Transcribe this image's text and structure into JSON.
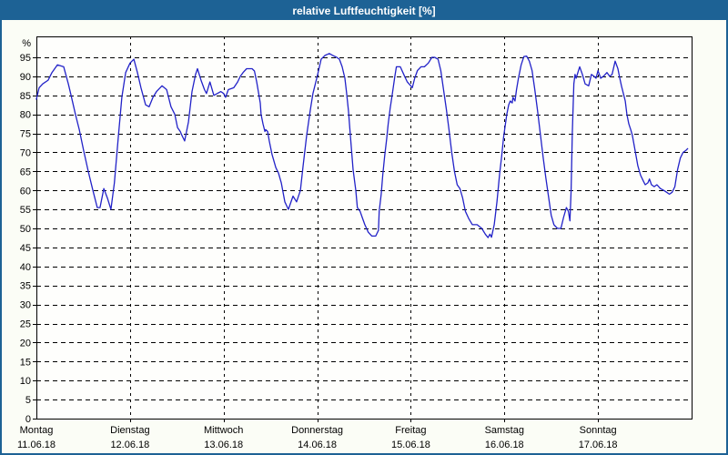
{
  "window": {
    "title": "relative Luftfeuchtigkeit [%]"
  },
  "colors": {
    "titlebar_bg": "#1d6295",
    "titlebar_text": "#ffffff",
    "window_border": "#1d6295",
    "panel_bg": "#fbfdf6",
    "plot_bg": "#fefefc",
    "grid": "#000000",
    "axis": "#000000",
    "line": "#2222c8",
    "label_text": "#000000"
  },
  "chart_data": {
    "type": "line",
    "title": "relative Luftfeuchtigkeit [%]",
    "y_unit_label": "%",
    "ylim": [
      0,
      100.5
    ],
    "y_ticks": [
      0,
      5,
      10,
      15,
      20,
      25,
      30,
      35,
      40,
      45,
      50,
      55,
      60,
      65,
      70,
      75,
      80,
      85,
      90,
      95
    ],
    "x_total_hours": 168,
    "grid": "dashed",
    "legend": "none",
    "days": [
      {
        "name": "Montag",
        "date": "11.06.18"
      },
      {
        "name": "Dienstag",
        "date": "12.06.18"
      },
      {
        "name": "Mittwoch",
        "date": "13.06.18"
      },
      {
        "name": "Donnerstag",
        "date": "14.06.18"
      },
      {
        "name": "Freitag",
        "date": "15.06.18"
      },
      {
        "name": "Samstag",
        "date": "16.06.18"
      },
      {
        "name": "Sonntag",
        "date": "17.06.18"
      }
    ],
    "series": [
      {
        "name": "relative Luftfeuchtigkeit",
        "unit": "%",
        "color": "#2222c8",
        "points": [
          [
            0,
            84
          ],
          [
            0.7,
            87
          ],
          [
            1.6,
            88
          ],
          [
            3,
            89
          ],
          [
            4,
            91
          ],
          [
            5.4,
            93
          ],
          [
            7,
            92.5
          ],
          [
            8.2,
            88
          ],
          [
            8.9,
            85
          ],
          [
            10,
            80
          ],
          [
            11,
            76
          ],
          [
            12.1,
            70.5
          ],
          [
            13.3,
            65
          ],
          [
            14.5,
            60
          ],
          [
            15.6,
            55.5
          ],
          [
            16.3,
            55.5
          ],
          [
            17.3,
            60.5
          ],
          [
            18.2,
            58
          ],
          [
            19.1,
            55
          ],
          [
            20,
            62
          ],
          [
            21,
            74
          ],
          [
            21.9,
            84.5
          ],
          [
            22.9,
            91
          ],
          [
            24,
            93.5
          ],
          [
            25,
            94.5
          ],
          [
            25.9,
            91
          ],
          [
            26.8,
            87
          ],
          [
            28,
            82.5
          ],
          [
            28.9,
            82
          ],
          [
            29.9,
            84.5
          ],
          [
            30.8,
            86
          ],
          [
            32.2,
            87.5
          ],
          [
            33.4,
            86.5
          ],
          [
            34.5,
            82
          ],
          [
            35.5,
            80
          ],
          [
            36.2,
            76.5
          ],
          [
            36.9,
            75.5
          ],
          [
            37.3,
            74.5
          ],
          [
            38,
            73
          ],
          [
            39,
            78
          ],
          [
            39.9,
            86
          ],
          [
            40.8,
            90.5
          ],
          [
            41.3,
            92
          ],
          [
            42.2,
            89
          ],
          [
            43.1,
            86.5
          ],
          [
            43.6,
            85.5
          ],
          [
            44.5,
            88.5
          ],
          [
            45.5,
            85
          ],
          [
            46.4,
            85.5
          ],
          [
            47.3,
            86
          ],
          [
            48,
            85.5
          ],
          [
            48.5,
            84.5
          ],
          [
            49.2,
            86.5
          ],
          [
            50.6,
            87
          ],
          [
            51.6,
            88.5
          ],
          [
            52.3,
            90
          ],
          [
            53,
            91
          ],
          [
            53.9,
            92
          ],
          [
            55.3,
            92
          ],
          [
            55.9,
            91.4
          ],
          [
            56.5,
            88.5
          ],
          [
            56.9,
            86
          ],
          [
            57.4,
            83
          ],
          [
            57.6,
            80
          ],
          [
            58.1,
            77.5
          ],
          [
            58.6,
            75.5
          ],
          [
            58.8,
            76
          ],
          [
            59.3,
            75.5
          ],
          [
            59.7,
            73
          ],
          [
            60.4,
            69.5
          ],
          [
            61.4,
            66
          ],
          [
            62.1,
            64.5
          ],
          [
            62.8,
            62
          ],
          [
            63.7,
            57
          ],
          [
            64.6,
            55
          ],
          [
            65.8,
            58.5
          ],
          [
            66.7,
            57
          ],
          [
            67.7,
            60
          ],
          [
            68.4,
            66.5
          ],
          [
            69.3,
            74.5
          ],
          [
            70.2,
            81
          ],
          [
            70.9,
            85.5
          ],
          [
            72,
            90
          ],
          [
            73,
            94.5
          ],
          [
            74,
            95.5
          ],
          [
            75.1,
            96
          ],
          [
            76,
            95.5
          ],
          [
            77,
            95
          ],
          [
            77.7,
            94.5
          ],
          [
            78.4,
            92.5
          ],
          [
            79.1,
            89.5
          ],
          [
            79.5,
            86
          ],
          [
            80,
            81
          ],
          [
            80.5,
            74.5
          ],
          [
            81.2,
            65.5
          ],
          [
            81.9,
            60
          ],
          [
            82.3,
            55.5
          ],
          [
            83,
            54.5
          ],
          [
            83.5,
            53
          ],
          [
            84.2,
            51
          ],
          [
            85.1,
            49
          ],
          [
            86,
            48
          ],
          [
            87,
            48
          ],
          [
            87.7,
            49.5
          ],
          [
            87.9,
            54.5
          ],
          [
            88.4,
            59
          ],
          [
            88.8,
            64
          ],
          [
            89.3,
            69
          ],
          [
            89.8,
            73.5
          ],
          [
            90.2,
            77.5
          ],
          [
            90.7,
            81.5
          ],
          [
            91.2,
            85
          ],
          [
            91.9,
            90
          ],
          [
            92.3,
            92.5
          ],
          [
            93.3,
            92.5
          ],
          [
            94.2,
            90.5
          ],
          [
            95.1,
            88.5
          ],
          [
            96,
            87.5
          ],
          [
            96.4,
            87
          ],
          [
            97,
            89.5
          ],
          [
            97.7,
            91.5
          ],
          [
            98.6,
            92.5
          ],
          [
            99.5,
            92.5
          ],
          [
            100.5,
            93.5
          ],
          [
            101.4,
            95
          ],
          [
            102.1,
            95
          ],
          [
            103,
            94.5
          ],
          [
            103.7,
            91.5
          ],
          [
            104.4,
            86.5
          ],
          [
            105.1,
            81.5
          ],
          [
            105.8,
            76
          ],
          [
            106.5,
            70
          ],
          [
            107.2,
            65
          ],
          [
            107.9,
            61.5
          ],
          [
            108.6,
            60.5
          ],
          [
            109.3,
            58
          ],
          [
            110,
            54.5
          ],
          [
            110.9,
            52.5
          ],
          [
            111.8,
            51
          ],
          [
            113,
            51
          ],
          [
            114.2,
            50
          ],
          [
            115.1,
            48.5
          ],
          [
            115.8,
            47.6
          ],
          [
            116.3,
            48.5
          ],
          [
            116.7,
            47.7
          ],
          [
            117.4,
            51
          ],
          [
            118.1,
            57
          ],
          [
            118.8,
            64.5
          ],
          [
            119.3,
            69
          ],
          [
            119.8,
            74
          ],
          [
            120.6,
            80
          ],
          [
            121.1,
            82.5
          ],
          [
            121.5,
            83.5
          ],
          [
            122,
            83
          ],
          [
            122.2,
            84.5
          ],
          [
            122.7,
            83.5
          ],
          [
            123.1,
            86.5
          ],
          [
            123.6,
            89.5
          ],
          [
            124.3,
            93
          ],
          [
            125,
            95.2
          ],
          [
            125.7,
            95.3
          ],
          [
            126.4,
            94
          ],
          [
            127.1,
            91.5
          ],
          [
            127.8,
            86.5
          ],
          [
            128.5,
            81
          ],
          [
            129.2,
            75
          ],
          [
            129.9,
            69
          ],
          [
            130.6,
            63.5
          ],
          [
            131.3,
            58.5
          ],
          [
            132,
            53.5
          ],
          [
            132.7,
            51
          ],
          [
            133.6,
            50
          ],
          [
            134.5,
            50
          ],
          [
            135.2,
            53
          ],
          [
            135.9,
            55.5
          ],
          [
            136.4,
            54.5
          ],
          [
            136.8,
            52
          ],
          [
            137.1,
            60
          ],
          [
            137.4,
            75
          ],
          [
            137.8,
            88
          ],
          [
            138.1,
            90.5
          ],
          [
            138.4,
            89.5
          ],
          [
            139.3,
            92.5
          ],
          [
            140,
            90.5
          ],
          [
            140.7,
            88
          ],
          [
            141.6,
            87.5
          ],
          [
            142.3,
            90.5
          ],
          [
            143,
            90
          ],
          [
            143.5,
            89.5
          ],
          [
            144,
            91.5
          ],
          [
            144.7,
            89.5
          ],
          [
            145.4,
            90
          ],
          [
            146.3,
            91
          ],
          [
            147,
            90
          ],
          [
            147.6,
            90.5
          ],
          [
            148.4,
            94
          ],
          [
            149.1,
            92
          ],
          [
            149.6,
            89.5
          ],
          [
            150,
            87.5
          ],
          [
            150.5,
            85.5
          ],
          [
            151,
            83.5
          ],
          [
            151.4,
            80
          ],
          [
            151.9,
            77.5
          ],
          [
            152.4,
            76
          ],
          [
            152.8,
            74.5
          ],
          [
            153.5,
            70.5
          ],
          [
            154.2,
            66.5
          ],
          [
            154.9,
            64
          ],
          [
            155.6,
            62.5
          ],
          [
            156.1,
            61.5
          ],
          [
            156.8,
            62
          ],
          [
            157.2,
            63
          ],
          [
            157.7,
            61.5
          ],
          [
            158.4,
            61
          ],
          [
            159.1,
            61.5
          ],
          [
            160,
            60.5
          ],
          [
            160.9,
            60
          ],
          [
            161.6,
            59.5
          ],
          [
            162.3,
            59
          ],
          [
            163,
            59.5
          ],
          [
            163.7,
            61
          ],
          [
            164.4,
            65.5
          ],
          [
            165.1,
            68.5
          ],
          [
            165.8,
            70
          ],
          [
            166.5,
            70.5
          ],
          [
            167,
            71
          ]
        ]
      }
    ]
  }
}
